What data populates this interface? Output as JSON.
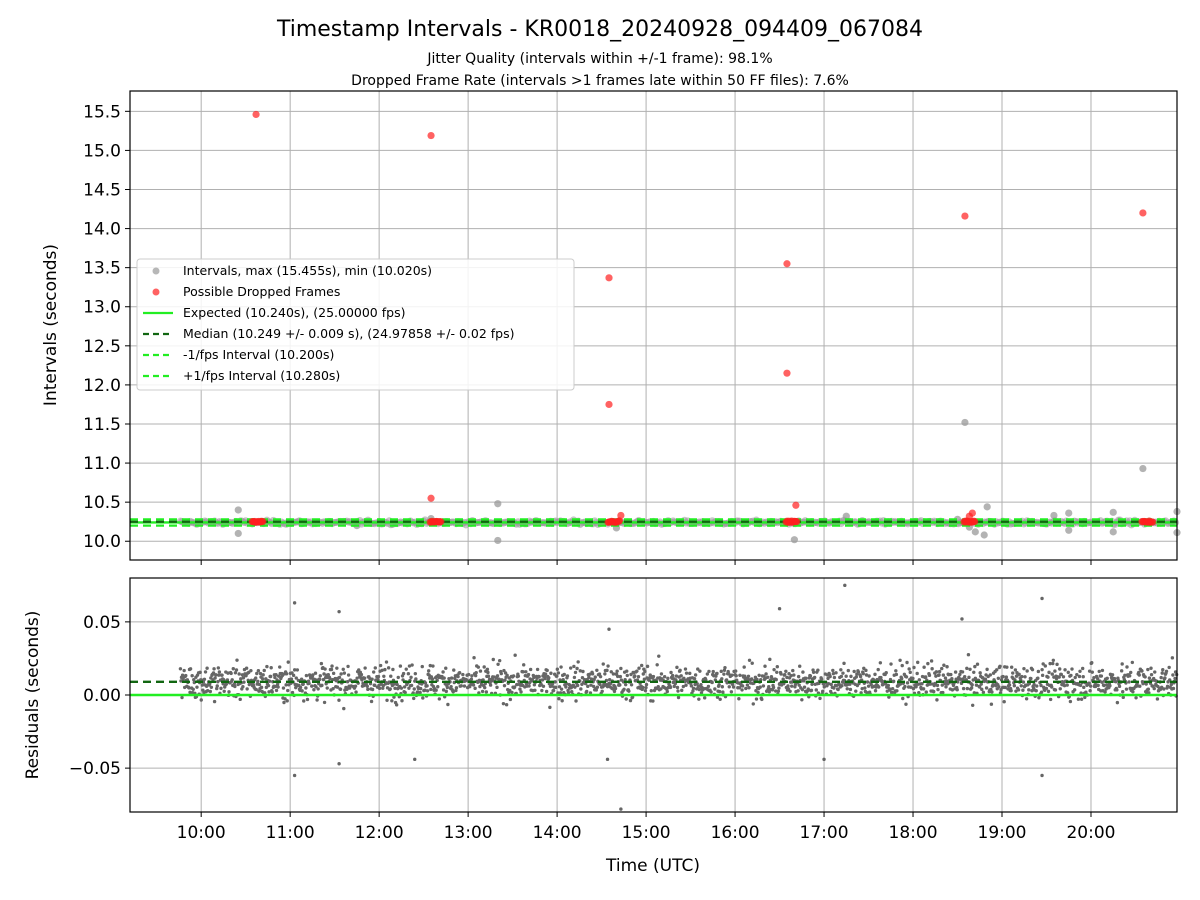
{
  "chart_data": [
    {
      "type": "scatter",
      "title": "Timestamp Intervals - KR0018_20240928_094409_067084",
      "subtitle_lines": [
        "Jitter Quality (intervals within +/-1 frame): 98.1%",
        "Dropped Frame Rate (intervals >1 frames late within 50 FF files): 7.6%"
      ],
      "xlabel": "",
      "ylabel": "Intervals (seconds)",
      "xlim": [
        "09:12",
        "20:58"
      ],
      "ylim": [
        9.76,
        15.76
      ],
      "yticks": [
        "10.0",
        "10.5",
        "11.0",
        "11.5",
        "12.0",
        "12.5",
        "13.0",
        "13.5",
        "14.0",
        "14.5",
        "15.0",
        "15.5"
      ],
      "xticks": [
        "10:00",
        "11:00",
        "12:00",
        "13:00",
        "14:00",
        "15:00",
        "16:00",
        "17:00",
        "18:00",
        "19:00",
        "20:00"
      ],
      "grid": true,
      "legend_position": "center-left",
      "series": [
        {
          "name": "Intervals, max (15.455s), min (10.020s)",
          "color": "#999999",
          "marker": "circle",
          "points": [
            [
              "10:25",
              10.4
            ],
            [
              "10:25",
              10.1
            ],
            [
              "11:45",
              10.2
            ],
            [
              "12:35",
              10.29
            ],
            [
              "13:20",
              10.48
            ],
            [
              "13:20",
              10.01
            ],
            [
              "14:40",
              10.17
            ],
            [
              "16:40",
              10.02
            ],
            [
              "17:15",
              10.32
            ],
            [
              "18:30",
              10.28
            ],
            [
              "18:35",
              11.52
            ],
            [
              "18:38",
              10.18
            ],
            [
              "18:42",
              10.12
            ],
            [
              "18:48",
              10.08
            ],
            [
              "18:50",
              10.44
            ],
            [
              "19:35",
              10.33
            ],
            [
              "19:45",
              10.14
            ],
            [
              "19:45",
              10.36
            ],
            [
              "20:15",
              10.37
            ],
            [
              "20:15",
              10.12
            ],
            [
              "20:35",
              10.93
            ],
            [
              "20:58",
              10.38
            ],
            [
              "20:58",
              10.11
            ]
          ]
        },
        {
          "name": "Possible Dropped Frames",
          "color": "#ff2020",
          "marker": "circle",
          "points": [
            [
              "10:37",
              15.46
            ],
            [
              "12:35",
              15.19
            ],
            [
              "12:35",
              10.55
            ],
            [
              "14:35",
              13.37
            ],
            [
              "14:35",
              11.75
            ],
            [
              "16:35",
              13.55
            ],
            [
              "16:35",
              12.15
            ],
            [
              "16:41",
              10.46
            ],
            [
              "18:35",
              14.16
            ],
            [
              "18:38",
              10.32
            ],
            [
              "18:40",
              10.36
            ],
            [
              "20:35",
              14.2
            ],
            [
              "14:43",
              10.33
            ],
            [
              "14:42",
              10.26
            ]
          ],
          "clusters": [
            {
              "x": "10:38",
              "y": 10.25
            },
            {
              "x": "12:38",
              "y": 10.25
            },
            {
              "x": "14:38",
              "y": 10.25
            },
            {
              "x": "16:38",
              "y": 10.25
            },
            {
              "x": "18:38",
              "y": 10.25
            },
            {
              "x": "20:38",
              "y": 10.25
            }
          ]
        },
        {
          "name": "Expected (10.240s), (25.00000 fps)",
          "color": "#22ee22",
          "style": "solid",
          "y": 10.24
        },
        {
          "name": "Median (10.249 +/- 0.009 s), (24.97858 +/- 0.02 fps)",
          "color": "#116611",
          "style": "dashed",
          "y": 10.249
        },
        {
          "name": "-1/fps Interval (10.200s)",
          "color": "#22ee22",
          "style": "dashed",
          "y": 10.2
        },
        {
          "name": "+1/fps Interval (10.280s)",
          "color": "#22ee22",
          "style": "dashed",
          "y": 10.28
        }
      ],
      "band_data": {
        "x_range": [
          "09:46",
          "20:58"
        ],
        "y_center": 10.24,
        "y_spread": 0.025
      }
    },
    {
      "type": "scatter",
      "title": "",
      "xlabel": "Time (UTC)",
      "ylabel": "Residuals (seconds)",
      "xlim": [
        "09:12",
        "20:58"
      ],
      "ylim": [
        -0.08,
        0.08
      ],
      "yticks": [
        "−0.05",
        "0.00",
        "0.05"
      ],
      "ytick_values": [
        -0.05,
        0.0,
        0.05
      ],
      "xticks": [
        "10:00",
        "11:00",
        "12:00",
        "13:00",
        "14:00",
        "15:00",
        "16:00",
        "17:00",
        "18:00",
        "19:00",
        "20:00"
      ],
      "grid": true,
      "series": [
        {
          "name": "Residuals",
          "color": "#666666",
          "x_range": [
            "09:46",
            "20:58"
          ],
          "mean": 0.009,
          "spread": 0.017,
          "outliers": [
            [
              "11:03",
              0.063
            ],
            [
              "11:03",
              -0.055
            ],
            [
              "11:33",
              0.057
            ],
            [
              "11:33",
              -0.047
            ],
            [
              "12:24",
              -0.044
            ],
            [
              "14:34",
              -0.044
            ],
            [
              "14:43",
              -0.078
            ],
            [
              "14:35",
              0.045
            ],
            [
              "16:30",
              0.059
            ],
            [
              "17:00",
              -0.044
            ],
            [
              "17:14",
              0.075
            ],
            [
              "19:27",
              0.066
            ],
            [
              "19:27",
              -0.055
            ],
            [
              "18:33",
              0.052
            ]
          ]
        },
        {
          "name": "Expected",
          "color": "#22ee22",
          "style": "solid",
          "y": 0.0
        },
        {
          "name": "Median",
          "color": "#116611",
          "style": "dashed",
          "y": 0.009
        }
      ]
    }
  ]
}
